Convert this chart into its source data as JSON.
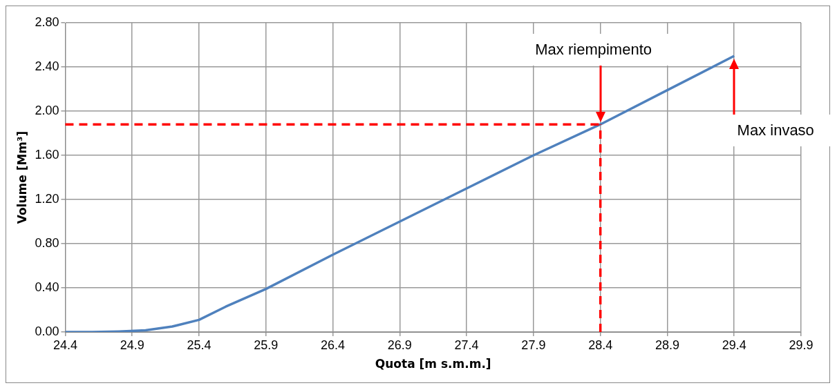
{
  "chart_data": {
    "type": "line",
    "xlabel": "Quota [m s.m.m.]",
    "ylabel": "Volume [Mm³]",
    "x": [
      24.4,
      24.6,
      24.8,
      25.0,
      25.2,
      25.4,
      25.6,
      25.9,
      26.4,
      26.9,
      27.4,
      27.9,
      28.4,
      28.9,
      29.4
    ],
    "series": [
      {
        "color": "#4f81bd",
        "values": [
          0,
          0,
          0.005,
          0.015,
          0.05,
          0.11,
          0.23,
          0.39,
          0.7,
          1.0,
          1.3,
          1.6,
          1.88,
          2.19,
          2.5
        ]
      }
    ],
    "xlim": [
      24.4,
      29.9
    ],
    "xticks": [
      {
        "value": 24.4,
        "label": "24.4"
      },
      {
        "value": 24.9,
        "label": "24.9"
      },
      {
        "value": 25.4,
        "label": "25.4"
      },
      {
        "value": 25.9,
        "label": "25.9"
      },
      {
        "value": 26.4,
        "label": "26.4"
      },
      {
        "value": 26.9,
        "label": "26.9"
      },
      {
        "value": 27.4,
        "label": "27.4"
      },
      {
        "value": 27.9,
        "label": "27.9"
      },
      {
        "value": 28.4,
        "label": "28.4"
      },
      {
        "value": 28.9,
        "label": "28.9"
      },
      {
        "value": 29.4,
        "label": "29.4"
      },
      {
        "value": 29.9,
        "label": "29.9"
      }
    ],
    "ylim": [
      0,
      2.8
    ],
    "yticks": [
      {
        "value": 0,
        "label": "0.00"
      },
      {
        "value": 0.4,
        "label": "0.40"
      },
      {
        "value": 0.8,
        "label": "0.80"
      },
      {
        "value": 1.2,
        "label": "1.20"
      },
      {
        "value": 1.6,
        "label": "1.60"
      },
      {
        "value": 2.0,
        "label": "2.00"
      },
      {
        "value": 2.4,
        "label": "2.40"
      },
      {
        "value": 2.8,
        "label": "2.80"
      }
    ],
    "ref_lines": [
      {
        "axis": "y",
        "value": 1.88,
        "color": "#ff0000",
        "line_style": "dashed"
      },
      {
        "axis": "x",
        "value": 28.4,
        "color": "#ff0000",
        "line_style": "dashed"
      }
    ],
    "annotations": [
      "Max riempimento",
      "Max invaso"
    ],
    "grid": true,
    "legend": false,
    "marker": "none",
    "line_style": "solid"
  }
}
